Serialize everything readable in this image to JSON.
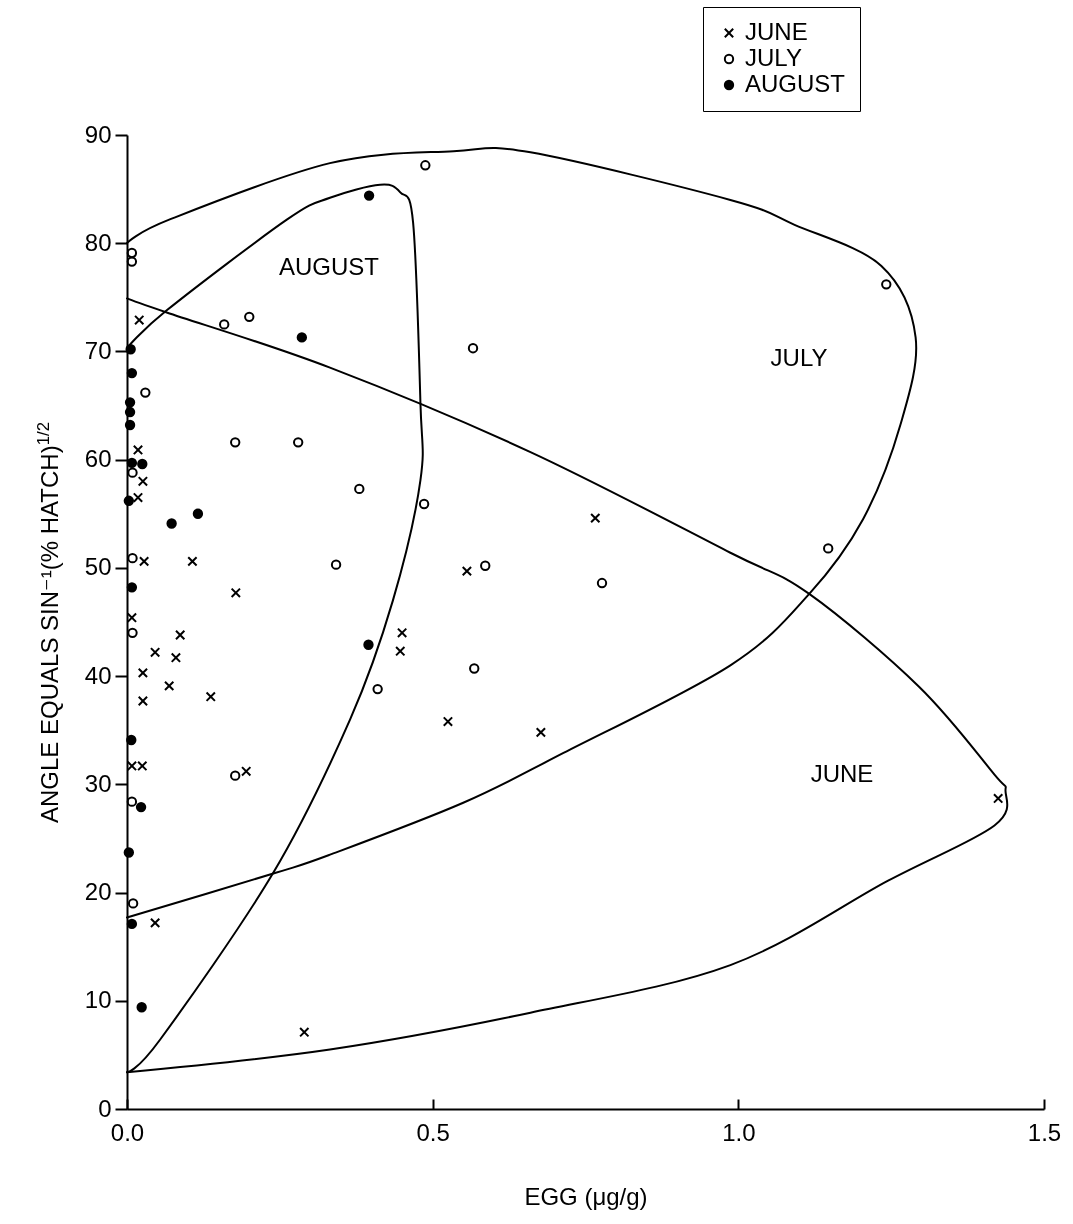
{
  "chart_data": {
    "type": "scatter",
    "xlabel": "EGG (μg/g)",
    "ylabel": "ANGLE EQUALS SIN⁻¹(% HATCH)$^{1/2}$",
    "xlim": [
      0,
      1.5
    ],
    "ylim": [
      0,
      90
    ],
    "xticks": [
      {
        "value": 0,
        "label": "0.0"
      },
      0.5,
      {
        "value": 1,
        "label": "1.0"
      },
      1.5
    ],
    "yticks": [
      0,
      10,
      20,
      30,
      40,
      50,
      60,
      70,
      80,
      90
    ],
    "grid": false,
    "legend": "top right",
    "annotations": [
      "AUGUST",
      "JULY",
      "JUNE"
    ],
    "series": [
      {
        "name": "JUNE",
        "color": "#000000",
        "marker": "cross",
        "x": [
          0.02,
          0.018,
          0.026,
          0.018,
          0.028,
          0.107,
          0.178,
          0.008,
          0.087,
          0.046,
          0.08,
          0.026,
          0.069,
          0.026,
          0.137,
          0.008,
          0.025,
          0.195,
          0.046,
          0.29,
          0.766,
          0.556,
          0.45,
          0.447,
          0.525,
          0.677,
          1.425
        ],
        "values": [
          72.9,
          60.9,
          58.0,
          56.5,
          50.6,
          50.6,
          47.7,
          45.4,
          43.8,
          42.2,
          41.7,
          40.3,
          39.1,
          37.7,
          38.1,
          31.7,
          31.7,
          31.2,
          17.2,
          7.1,
          54.6,
          49.7,
          44.0,
          42.3,
          35.8,
          34.8,
          28.7
        ]
      },
      {
        "name": "JULY",
        "color": "#000000",
        "marker": "circle",
        "x": [
          0.008,
          0.008,
          0.03,
          0.009,
          0.177,
          0.28,
          0.159,
          0.2,
          0.009,
          0.342,
          0.009,
          0.177,
          0.008,
          0.01,
          0.488,
          0.566,
          0.38,
          0.486,
          0.586,
          0.777,
          0.568,
          0.41,
          1.242,
          1.147
        ],
        "values": [
          79.1,
          78.3,
          66.2,
          58.8,
          61.6,
          61.6,
          72.5,
          73.2,
          50.9,
          50.3,
          44.0,
          30.8,
          28.4,
          19.0,
          87.2,
          70.3,
          57.3,
          55.9,
          50.2,
          48.6,
          40.7,
          38.8,
          76.2,
          51.8
        ]
      },
      {
        "name": "AUGUST",
        "color": "#000000",
        "marker": "dot",
        "x": [
          0.006,
          0.008,
          0.005,
          0.005,
          0.005,
          0.008,
          0.025,
          0.003,
          0.073,
          0.116,
          0.286,
          0.008,
          0.007,
          0.023,
          0.003,
          0.008,
          0.024,
          0.396,
          0.395
        ],
        "values": [
          70.2,
          68.0,
          65.3,
          64.4,
          63.2,
          59.7,
          59.6,
          56.2,
          54.1,
          55.0,
          71.3,
          48.2,
          34.1,
          27.9,
          23.7,
          17.1,
          9.4,
          84.4,
          42.9
        ]
      },
      {
        "type": "line",
        "color": "#000000",
        "marker": "none",
        "x": [
          0,
          0.07,
          0.332,
          0.534,
          0.66,
          0.987,
          1.092,
          1.234,
          1.29,
          1.265,
          1.204,
          1.116,
          0.987,
          0.714,
          0.55,
          0.332,
          0.242,
          0
        ],
        "values": [
          80.0,
          82.2,
          87.4,
          88.5,
          88.4,
          84.0,
          81.7,
          77.9,
          71.3,
          63.2,
          54.5,
          47.6,
          41.0,
          32.9,
          28.3,
          23.5,
          21.8,
          17.7
        ]
      },
      {
        "type": "line",
        "color": "#000000",
        "marker": "none",
        "x": [
          0,
          0.065,
          0.332,
          0.66,
          0.987,
          1.116,
          1.296,
          1.419,
          1.437,
          1.419,
          1.245,
          0.987,
          0.66,
          0.332,
          0
        ],
        "values": [
          74.9,
          73.6,
          68.5,
          60.7,
          51.4,
          47.6,
          39.0,
          30.9,
          29.4,
          26.2,
          21.1,
          13.3,
          8.9,
          5.5,
          3.4
        ]
      },
      {
        "type": "line",
        "color": "#000000",
        "marker": "none",
        "x": [
          0,
          0.054,
          0.239,
          0.365,
          0.435,
          0.48,
          0.48,
          0.468,
          0.447,
          0.414,
          0.332,
          0.262,
          0.065,
          0
        ],
        "values": [
          3.4,
          6.4,
          21.8,
          36.0,
          47.0,
          58.1,
          65.2,
          81.9,
          84.7,
          85.4,
          84.2,
          82.2,
          73.8,
          70.3
        ]
      }
    ]
  }
}
